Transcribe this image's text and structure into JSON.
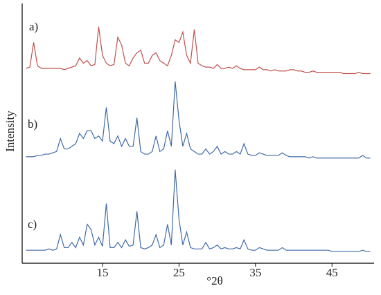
{
  "chart_data": {
    "type": "line",
    "xlabel": "°2θ",
    "ylabel": "Intensity",
    "xlim": [
      4.5,
      50.5
    ],
    "xticks": [
      15,
      25,
      35,
      45
    ],
    "ylim": [
      0,
      100
    ],
    "annotations": [
      "a)",
      "b)",
      "c)"
    ],
    "x": [
      5,
      5.5,
      6,
      6.5,
      7,
      7.5,
      8,
      8.5,
      9,
      9.5,
      10,
      10.5,
      11,
      11.5,
      12,
      12.5,
      13,
      13.5,
      14,
      14.5,
      15,
      15.5,
      16,
      16.5,
      17,
      17.5,
      18,
      18.5,
      19,
      19.5,
      20,
      20.5,
      21,
      21.5,
      22,
      22.5,
      23,
      23.5,
      24,
      24.5,
      25,
      25.5,
      26,
      26.5,
      27,
      27.5,
      28,
      28.5,
      29,
      29.5,
      30,
      30.5,
      31,
      31.5,
      32,
      32.5,
      33,
      33.5,
      34,
      34.5,
      35,
      35.5,
      36,
      36.5,
      37,
      37.5,
      38,
      38.5,
      39,
      39.5,
      40,
      40.5,
      41,
      41.5,
      42,
      42.5,
      43,
      43.5,
      44,
      44.5,
      45,
      45.5,
      46,
      46.5,
      47,
      47.5,
      48,
      48.5,
      49,
      49.5,
      50
    ],
    "series": [
      {
        "color": "#c0504d",
        "values": [
          75,
          75.5,
          85,
          76,
          75,
          75,
          75,
          75,
          75,
          75,
          74.5,
          75,
          75.5,
          76,
          79,
          77,
          78,
          76,
          76.5,
          91,
          80,
          77,
          76,
          76.5,
          87,
          84,
          77,
          76,
          79,
          81,
          82,
          77,
          77,
          80,
          81,
          78,
          77,
          76,
          80,
          86,
          85,
          89,
          80,
          77,
          90,
          77,
          76,
          75.5,
          75.5,
          75,
          76.5,
          75,
          75,
          75.5,
          75,
          76,
          75,
          74.5,
          74.5,
          74.5,
          74.5,
          75.5,
          74.5,
          74.5,
          74,
          74.5,
          74,
          74,
          74,
          74.5,
          74.5,
          74,
          74,
          73.5,
          73.5,
          74,
          73.5,
          73.5,
          73.5,
          73.5,
          73.5,
          73.5,
          73.5,
          73,
          73,
          73,
          73,
          73.5,
          73,
          73,
          73
        ]
      },
      {
        "color": "#3f6aa6",
        "values": [
          41,
          41,
          41,
          41.5,
          41.5,
          42,
          42,
          42.5,
          43,
          48,
          44,
          44,
          45,
          46,
          50,
          48,
          51,
          51,
          48,
          49,
          47,
          60,
          47,
          46,
          49,
          45,
          48,
          45,
          45,
          56,
          43,
          42,
          42,
          43,
          49,
          43,
          44,
          51,
          45,
          70,
          55,
          45,
          50,
          44,
          43,
          42,
          42,
          44,
          42,
          43,
          45,
          42,
          43,
          42,
          42,
          43,
          42,
          46,
          42,
          41.5,
          41.5,
          42.5,
          42,
          41.5,
          41.5,
          41.5,
          41.5,
          42.5,
          41.5,
          41,
          41,
          41,
          41,
          41,
          40.5,
          41,
          40.5,
          40.5,
          40.5,
          40.5,
          40.5,
          40.5,
          40.5,
          40.5,
          40.5,
          40.5,
          40.5,
          40.5,
          41.5,
          40.5,
          40.5
        ]
      },
      {
        "color": "#3f6aa6",
        "values": [
          5,
          5,
          5,
          5,
          5,
          5,
          5.5,
          5,
          5.5,
          11,
          6,
          6,
          8,
          6,
          10,
          7,
          15,
          13,
          7,
          10,
          6.5,
          23,
          6,
          6,
          8,
          6,
          9,
          6.5,
          7,
          20,
          6,
          5.5,
          6,
          7,
          11,
          6,
          7,
          15,
          7,
          36,
          17,
          7,
          12,
          6,
          5.5,
          5.5,
          5.5,
          8,
          5.5,
          6,
          7,
          5.5,
          6,
          5.5,
          5.5,
          6,
          5.5,
          9,
          5.5,
          5,
          5,
          6,
          5.5,
          5,
          5,
          5,
          5,
          6,
          5,
          5,
          5,
          5,
          5,
          5,
          5,
          5,
          5,
          5,
          5,
          5,
          4.5,
          4.5,
          4.5,
          4.5,
          4.5,
          4.5,
          4.5,
          4.5,
          5,
          4.5,
          4.5
        ]
      }
    ]
  }
}
